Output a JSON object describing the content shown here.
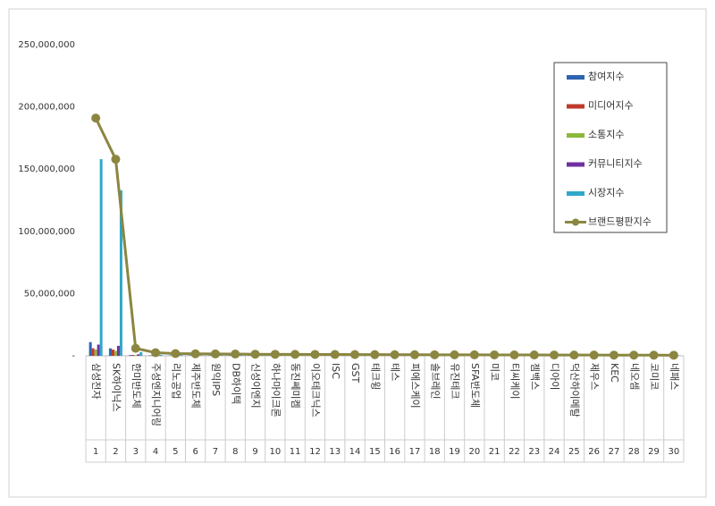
{
  "chart_data": {
    "type": "bar",
    "categories": [
      "삼성전자",
      "SK하이닉스",
      "한미반도체",
      "주성엔지니어링",
      "리노공업",
      "제주반도체",
      "원익IPS",
      "DB하이텍",
      "신성이엔지",
      "하나마이크론",
      "동진쎄미켐",
      "이오테크닉스",
      "ISC",
      "GST",
      "테크윙",
      "테스",
      "피에스케이",
      "솔브레인",
      "유진테크",
      "SFA반도체",
      "미코",
      "티씨케이",
      "젬백스",
      "디아이",
      "덕산하이메탈",
      "제우스",
      "KEC",
      "네오셈",
      "코미코",
      "네패스"
    ],
    "ranks": [
      1,
      2,
      3,
      4,
      5,
      6,
      7,
      8,
      9,
      10,
      11,
      12,
      13,
      14,
      15,
      16,
      17,
      18,
      19,
      20,
      21,
      22,
      23,
      24,
      25,
      26,
      27,
      28,
      29,
      30
    ],
    "series": [
      {
        "name": "참여지수",
        "type": "bar",
        "color": "#2e64b0",
        "values": [
          11000000,
          6000000,
          600000,
          400000,
          300000,
          300000,
          250000,
          250000,
          200000,
          200000,
          200000,
          180000,
          170000,
          160000,
          150000,
          140000,
          130000,
          120000,
          110000,
          100000,
          100000,
          90000,
          90000,
          80000,
          80000,
          70000,
          70000,
          60000,
          60000,
          50000
        ]
      },
      {
        "name": "미디어지수",
        "type": "bar",
        "color": "#c0392b",
        "values": [
          6000000,
          5000000,
          700000,
          500000,
          300000,
          300000,
          300000,
          300000,
          250000,
          250000,
          200000,
          200000,
          200000,
          180000,
          170000,
          160000,
          150000,
          140000,
          130000,
          120000,
          110000,
          100000,
          100000,
          90000,
          90000,
          80000,
          80000,
          70000,
          70000,
          60000
        ]
      },
      {
        "name": "소통지수",
        "type": "bar",
        "color": "#8db83c",
        "values": [
          5000000,
          4000000,
          500000,
          300000,
          250000,
          250000,
          200000,
          200000,
          200000,
          180000,
          170000,
          160000,
          150000,
          140000,
          130000,
          120000,
          110000,
          100000,
          100000,
          90000,
          90000,
          80000,
          80000,
          70000,
          70000,
          60000,
          60000,
          50000,
          50000,
          50000
        ]
      },
      {
        "name": "커뮤니티지수",
        "type": "bar",
        "color": "#7030a0",
        "values": [
          9000000,
          8000000,
          1200000,
          500000,
          300000,
          300000,
          300000,
          250000,
          250000,
          200000,
          200000,
          200000,
          180000,
          170000,
          160000,
          150000,
          140000,
          130000,
          120000,
          110000,
          100000,
          100000,
          90000,
          90000,
          80000,
          80000,
          70000,
          70000,
          60000,
          60000
        ]
      },
      {
        "name": "시장지수",
        "type": "bar",
        "color": "#2fa8c8",
        "values": [
          158000000,
          133000000,
          3000000,
          800000,
          650000,
          450000,
          450000,
          400000,
          450000,
          470000,
          480000,
          410000,
          400000,
          380000,
          370000,
          360000,
          370000,
          380000,
          360000,
          370000,
          350000,
          350000,
          330000,
          360000,
          310000,
          340000,
          300000,
          290000,
          300000,
          270000
        ]
      },
      {
        "name": "브랜드평판지수",
        "type": "line",
        "color": "#8b8640",
        "values": [
          191000000,
          158000000,
          6000000,
          2500000,
          1800000,
          1600000,
          1500000,
          1400000,
          1300000,
          1200000,
          1150000,
          1100000,
          1050000,
          1000000,
          950000,
          900000,
          870000,
          840000,
          810000,
          780000,
          750000,
          720000,
          690000,
          660000,
          630000,
          600000,
          570000,
          540000,
          510000,
          480000
        ]
      }
    ],
    "ylim": [
      0,
      250000000
    ],
    "yticks": [
      {
        "value": 0,
        "label": "-"
      },
      {
        "value": 50000000,
        "label": "50,000,000"
      },
      {
        "value": 100000000,
        "label": "100,000,000"
      },
      {
        "value": 150000000,
        "label": "150,000,000"
      },
      {
        "value": 200000000,
        "label": "200,000,000"
      },
      {
        "value": 250000000,
        "label": "250,000,000"
      }
    ],
    "grid": false
  }
}
